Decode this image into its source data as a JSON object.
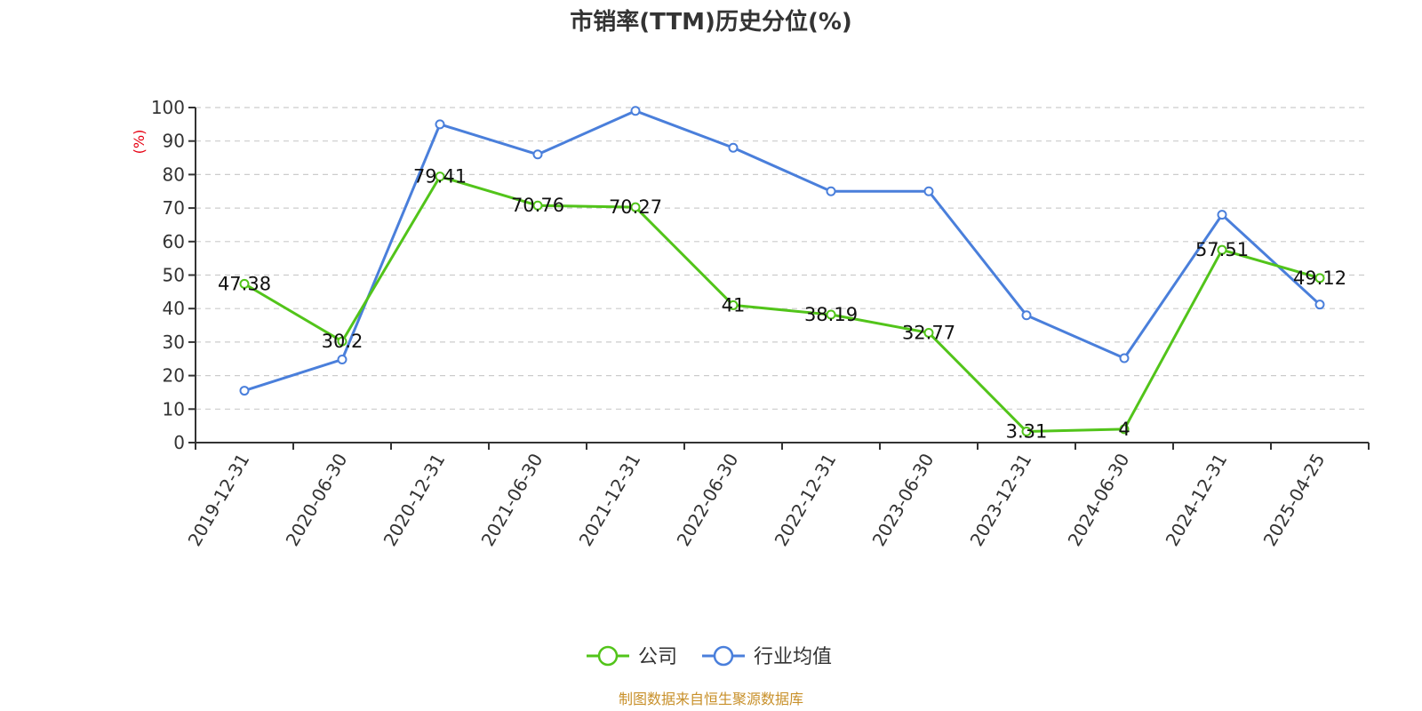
{
  "chart_data": {
    "type": "line",
    "title": "市销率(TTM)历史分位(%)",
    "ylabel": "(%)",
    "xlabel": "",
    "ylim": [
      0,
      100
    ],
    "yticks": [
      0,
      10,
      20,
      30,
      40,
      50,
      60,
      70,
      80,
      90,
      100
    ],
    "grid": true,
    "legend_position": "bottom",
    "categories": [
      "2019-12-31",
      "2020-06-30",
      "2020-12-31",
      "2021-06-30",
      "2021-12-31",
      "2022-06-30",
      "2022-12-31",
      "2023-06-30",
      "2023-12-31",
      "2024-06-30",
      "2024-12-31",
      "2025-04-25"
    ],
    "series": [
      {
        "name": "公司",
        "color": "#52c41a",
        "values": [
          47.38,
          30.2,
          79.41,
          70.76,
          70.27,
          41,
          38.19,
          32.77,
          3.31,
          4,
          57.51,
          49.12
        ],
        "labels": [
          "47.38",
          "30.2",
          "79.41",
          "70.76",
          "70.27",
          "41",
          "38.19",
          "32.77",
          "3.31",
          "4",
          "57.51",
          "49.12"
        ]
      },
      {
        "name": "行业均值",
        "color": "#4a7fdb",
        "values": [
          15.5,
          24.8,
          95,
          86,
          99,
          88,
          75,
          75,
          38,
          25.2,
          68,
          41.2
        ]
      }
    ],
    "source": "制图数据来自恒生聚源数据库"
  }
}
